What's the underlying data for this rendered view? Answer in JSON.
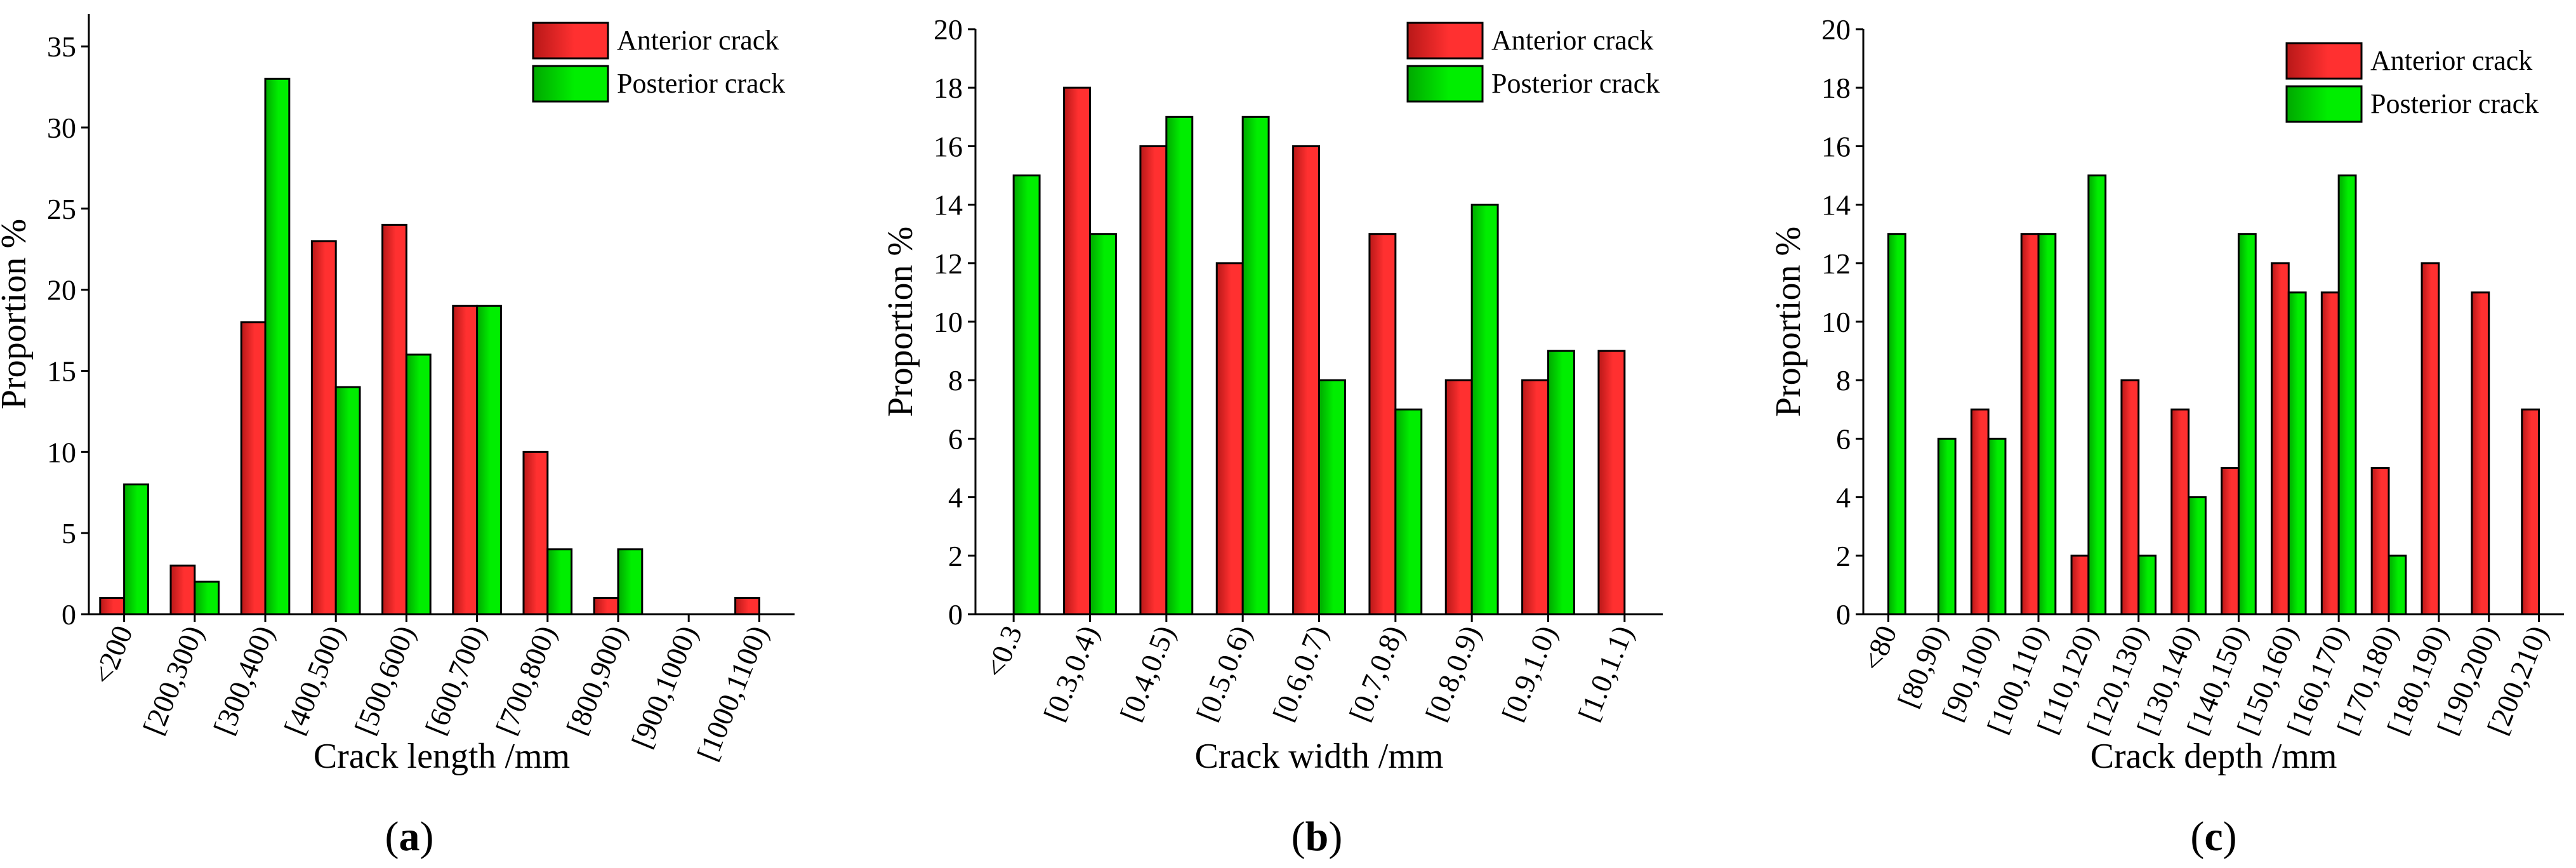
{
  "colors": {
    "anterior": "#ff1e1e",
    "posterior": "#00e600",
    "axis": "#000000"
  },
  "chart_data": [
    {
      "type": "bar",
      "panel": "a",
      "categories": [
        "<200",
        "[200,300)",
        "[300,400)",
        "[400,500)",
        "[500,600)",
        "[600,700)",
        "[700,800)",
        "[800,900)",
        "[900,1000)",
        "[1000,1100)"
      ],
      "series": [
        {
          "name": "Anterior crack",
          "values": [
            1,
            3,
            18,
            23,
            24,
            19,
            10,
            1,
            0,
            1
          ]
        },
        {
          "name": "Posterior crack",
          "values": [
            8,
            2,
            33,
            14,
            16,
            19,
            4,
            4,
            0,
            0
          ]
        }
      ],
      "xlabel": "Crack length /mm",
      "ylabel": "Proportion %",
      "ylim": [
        0,
        37
      ],
      "yticks": [
        0,
        5,
        10,
        15,
        20,
        25,
        30,
        35
      ],
      "legend": "top-right"
    },
    {
      "type": "bar",
      "panel": "b",
      "categories": [
        "<0.3",
        "[0.3,0.4)",
        "[0.4,0.5)",
        "[0.5,0.6)",
        "[0.6,0.7)",
        "[0.7,0.8)",
        "[0.8,0.9)",
        "[0.9,1.0)",
        "[1.0,1.1)"
      ],
      "series": [
        {
          "name": "Anterior crack",
          "values": [
            0,
            18,
            16,
            12,
            16,
            13,
            8,
            8,
            9
          ]
        },
        {
          "name": "Posterior crack",
          "values": [
            15,
            13,
            17,
            17,
            8,
            7,
            14,
            9,
            0
          ]
        }
      ],
      "xlabel": "Crack width /mm",
      "ylabel": "Proportion %",
      "ylim": [
        0,
        20
      ],
      "yticks": [
        0,
        2,
        4,
        6,
        8,
        10,
        12,
        14,
        16,
        18,
        20
      ],
      "legend": "top-right"
    },
    {
      "type": "bar",
      "panel": "c",
      "categories": [
        "<80",
        "[80,90)",
        "[90,100)",
        "[100,110)",
        "[110,120)",
        "[120,130)",
        "[130,140)",
        "[140,150)",
        "[150,160)",
        "[160,170)",
        "[170,180)",
        "[180,190)",
        "[190,200)",
        "[200,210)"
      ],
      "series": [
        {
          "name": "Anterior crack",
          "values": [
            0,
            0,
            7,
            13,
            2,
            8,
            7,
            5,
            12,
            11,
            5,
            12,
            11,
            7
          ]
        },
        {
          "name": "Posterior crack",
          "values": [
            13,
            6,
            6,
            13,
            15,
            2,
            4,
            13,
            11,
            15,
            2,
            0,
            0,
            0
          ]
        }
      ],
      "xlabel": "Crack depth /mm",
      "ylabel": "Proportion %",
      "ylim": [
        0,
        20
      ],
      "yticks": [
        0,
        2,
        4,
        6,
        8,
        10,
        12,
        14,
        16,
        18,
        20
      ],
      "legend": "top-right"
    }
  ],
  "panel_labels": [
    {
      "open": "(",
      "letter": "a",
      "close": ")"
    },
    {
      "open": "(",
      "letter": "b",
      "close": ")"
    },
    {
      "open": "(",
      "letter": "c",
      "close": ")"
    }
  ]
}
